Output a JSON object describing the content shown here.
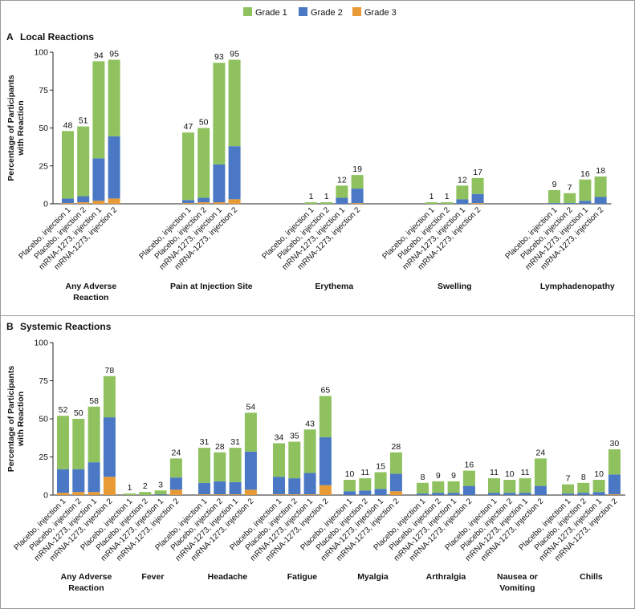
{
  "legend": [
    {
      "name": "Grade 1",
      "color": "#8fc25e"
    },
    {
      "name": "Grade 2",
      "color": "#4a78c4"
    },
    {
      "name": "Grade 3",
      "color": "#e89a35"
    }
  ],
  "chart_data": [
    {
      "type": "bar",
      "stacked": true,
      "panel_letter": "A",
      "title": "Local Reactions",
      "ylabel": [
        "Percentage of Participants",
        "with Reaction"
      ],
      "ylim": [
        0,
        100
      ],
      "yticks": [
        "0",
        "25",
        "50",
        "75",
        "100"
      ],
      "categories": [
        "Placebo, injection 1",
        "Placebo, injection 2",
        "mRNA-1273, injection 1",
        "mRNA-1273, injection 2"
      ],
      "groups": [
        {
          "label": [
            "Any Adverse",
            "Reaction"
          ],
          "totals": [
            "48",
            "51",
            "94",
            "95"
          ],
          "grade1": [
            44.5,
            46,
            64,
            50.5
          ],
          "grade2": [
            3,
            4,
            28,
            41
          ],
          "grade3": [
            0.5,
            1,
            2,
            3.5
          ]
        },
        {
          "label": [
            "Pain at Injection Site"
          ],
          "totals": [
            "47",
            "50",
            "93",
            "95"
          ],
          "grade1": [
            44.5,
            46,
            67,
            57
          ],
          "grade2": [
            2,
            3,
            25,
            35
          ],
          "grade3": [
            0.5,
            1,
            1,
            3
          ]
        },
        {
          "label": [
            "Erythema"
          ],
          "totals": [
            "1",
            "1",
            "12",
            "19"
          ],
          "grade1": [
            1,
            1,
            8,
            9
          ],
          "grade2": [
            0,
            0,
            4,
            9.5
          ],
          "grade3": [
            0,
            0,
            0,
            0.5
          ]
        },
        {
          "label": [
            "Swelling"
          ],
          "totals": [
            "1",
            "1",
            "12",
            "17"
          ],
          "grade1": [
            1,
            1,
            9,
            10.5
          ],
          "grade2": [
            0,
            0,
            3,
            6
          ],
          "grade3": [
            0,
            0,
            0,
            0.5
          ]
        },
        {
          "label": [
            "Lymphadenopathy"
          ],
          "totals": [
            "9",
            "7",
            "16",
            "18"
          ],
          "grade1": [
            8.5,
            6.5,
            14,
            13.5
          ],
          "grade2": [
            0.5,
            0.5,
            2,
            4.5
          ],
          "grade3": [
            0,
            0,
            0,
            0
          ]
        }
      ]
    },
    {
      "type": "bar",
      "stacked": true,
      "panel_letter": "B",
      "title": "Systemic Reactions",
      "ylabel": [
        "Percentage of Participants",
        "with Reaction"
      ],
      "ylim": [
        0,
        100
      ],
      "yticks": [
        "0",
        "25",
        "50",
        "75",
        "100"
      ],
      "categories": [
        "Placebo, injection 1",
        "Placebo, injection 2",
        "mRNA-1273, injection 1",
        "mRNA-1273, injection 2"
      ],
      "groups": [
        {
          "label": [
            "Any Adverse",
            "Reaction"
          ],
          "totals": [
            "52",
            "50",
            "58",
            "78"
          ],
          "grade1": [
            35,
            33,
            36.5,
            27
          ],
          "grade2": [
            15.5,
            15,
            19.5,
            39
          ],
          "grade3": [
            1.5,
            2,
            2,
            12
          ]
        },
        {
          "label": [
            "Fever"
          ],
          "totals": [
            "1",
            "2",
            "3",
            "24"
          ],
          "grade1": [
            1,
            2,
            2.5,
            12.5
          ],
          "grade2": [
            0,
            0,
            0.5,
            8
          ],
          "grade3": [
            0,
            0,
            0,
            3.5
          ]
        },
        {
          "label": [
            "Headache"
          ],
          "totals": [
            "31",
            "28",
            "31",
            "54"
          ],
          "grade1": [
            23,
            19,
            22.5,
            25.5
          ],
          "grade2": [
            7.5,
            8.5,
            8,
            25
          ],
          "grade3": [
            0.5,
            0.5,
            0.5,
            3.5
          ]
        },
        {
          "label": [
            "Fatigue"
          ],
          "totals": [
            "34",
            "35",
            "43",
            "65"
          ],
          "grade1": [
            22,
            24,
            28.5,
            27
          ],
          "grade2": [
            11.5,
            10.5,
            14,
            31.5
          ],
          "grade3": [
            0.5,
            0.5,
            0.5,
            6.5
          ]
        },
        {
          "label": [
            "Myalgia"
          ],
          "totals": [
            "10",
            "11",
            "15",
            "28"
          ],
          "grade1": [
            7.5,
            8,
            11,
            14
          ],
          "grade2": [
            2.5,
            3,
            4,
            11.5
          ],
          "grade3": [
            0,
            0,
            0,
            2.5
          ]
        },
        {
          "label": [
            "Arthralgia"
          ],
          "totals": [
            "8",
            "9",
            "9",
            "16"
          ],
          "grade1": [
            7,
            7.5,
            7.5,
            10
          ],
          "grade2": [
            1,
            1.5,
            1.5,
            6
          ],
          "grade3": [
            0,
            0,
            0,
            0
          ]
        },
        {
          "label": [
            "Nausea or",
            "Vomiting"
          ],
          "totals": [
            "11",
            "10",
            "11",
            "24"
          ],
          "grade1": [
            9.5,
            8.5,
            9.5,
            18
          ],
          "grade2": [
            1.5,
            1.5,
            1.5,
            6
          ],
          "grade3": [
            0,
            0,
            0,
            0
          ]
        },
        {
          "label": [
            "Chills"
          ],
          "totals": [
            "7",
            "8",
            "10",
            "30"
          ],
          "grade1": [
            6,
            6.5,
            8,
            16.5
          ],
          "grade2": [
            1,
            1.5,
            2,
            13
          ],
          "grade3": [
            0,
            0,
            0,
            0.5
          ]
        }
      ]
    }
  ]
}
